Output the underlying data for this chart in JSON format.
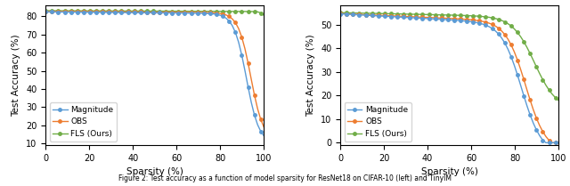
{
  "left": {
    "ylabel": "Test Accuracy (%)",
    "xlabel": "Sparsity (%)",
    "ylim": [
      9,
      86
    ],
    "yticks": [
      10,
      20,
      30,
      40,
      50,
      60,
      70,
      80
    ],
    "xlim": [
      0,
      100
    ],
    "xticks": [
      0,
      20,
      40,
      60,
      80,
      100
    ]
  },
  "right": {
    "ylabel": "Test Accuracy (%)",
    "xlabel": "Sparsity (%)",
    "ylim": [
      -1,
      58
    ],
    "yticks": [
      0,
      10,
      20,
      30,
      40,
      50
    ],
    "xlim": [
      0,
      100
    ],
    "xticks": [
      0,
      20,
      40,
      60,
      80,
      100
    ]
  },
  "colors": {
    "magnitude": "#5b9bd5",
    "obs": "#ed7d31",
    "fls": "#70ad47"
  },
  "marker": "o",
  "markersize": 2.5,
  "linewidth": 1.0
}
